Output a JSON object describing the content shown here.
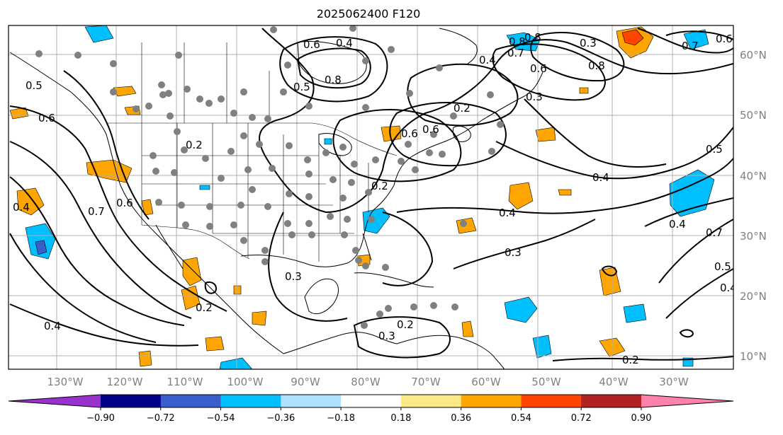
{
  "title": "2025062400 F120",
  "map": {
    "lon_labels": [
      "130°W",
      "120°W",
      "110°W",
      "100°W",
      "90°W",
      "80°W",
      "70°W",
      "60°W",
      "50°W",
      "40°W",
      "30°W"
    ],
    "lat_labels": [
      "60°N",
      "50°N",
      "40°N",
      "30°N",
      "20°N",
      "10°N"
    ],
    "contour_labels": [
      "0.6",
      "0.4",
      "0.8",
      "0.5",
      "0.8",
      "0.3",
      "0.8",
      "0.7",
      "0.6",
      "0.4",
      "0.6",
      "0.3",
      "0.7",
      "0.8",
      "0.6",
      "0.5",
      "0.6",
      "0.2",
      "0.2",
      "0.6",
      "0.2",
      "0.4",
      "0.5",
      "0.4",
      "0.4",
      "0.3",
      "0.4",
      "0.5",
      "0.7",
      "0.4",
      "0.2",
      "0.3",
      "0.2",
      "0.3",
      "0.2",
      "0.4",
      "0.7",
      "0.6"
    ],
    "colors": {
      "contour": "#000000",
      "grid": "#b0b0b0",
      "station": "#808080",
      "coast": "#000000"
    }
  },
  "colorbar": {
    "ticks": [
      "−0.90",
      "−0.72",
      "−0.54",
      "−0.36",
      "−0.18",
      "0.18",
      "0.36",
      "0.54",
      "0.72",
      "0.90"
    ],
    "colors": [
      "#9932cc",
      "#00008b",
      "#3a5fcd",
      "#00bfff",
      "#b0e2ff",
      "#ffffff",
      "#fce887",
      "#ffa500",
      "#ff4500",
      "#b22222",
      "#ff82ab"
    ]
  }
}
